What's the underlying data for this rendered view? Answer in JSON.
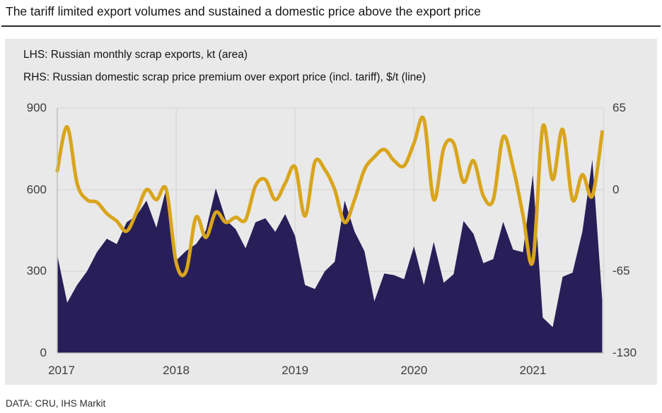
{
  "title": "The tariff limited export volumes and sustained a domestic price above the export price",
  "legend": {
    "lhs": "LHS: Russian monthly scrap exports, kt (area)",
    "rhs": "RHS: Russian domestic scrap price premium over export price (incl. tariff), $/t (line)"
  },
  "footer": "DATA: CRU, IHS Markit",
  "colors": {
    "area": "#281F58",
    "line": "#D9A51C",
    "panel_bg": "#E9E9E9",
    "grid": "#D9D9D9",
    "axis": "#BFBFBF",
    "tick_text": "#3D3D3D"
  },
  "chart_data": {
    "type": "area+line combo, dual axis, monthly Jan 2017 - Aug 2021",
    "x": {
      "start_year": 2017,
      "start_month": 1,
      "months": 56,
      "tick_years": [
        "2017",
        "2018",
        "2019",
        "2020",
        "2021"
      ]
    },
    "y_left": {
      "label": "Russian monthly scrap exports, kt",
      "ticks": [
        0,
        300,
        600,
        900
      ],
      "range": [
        0,
        900
      ]
    },
    "y_right": {
      "label": "Domestic scrap price premium over export price (incl. tariff), $/t",
      "ticks": [
        -130,
        -65,
        0,
        65
      ],
      "range": [
        -130,
        65
      ]
    },
    "series": [
      {
        "name": "Russian monthly scrap exports, kt",
        "type": "area",
        "axis": "left",
        "values": [
          360,
          185,
          250,
          300,
          370,
          420,
          400,
          480,
          505,
          560,
          460,
          605,
          340,
          375,
          400,
          450,
          605,
          490,
          455,
          385,
          480,
          495,
          445,
          510,
          430,
          250,
          235,
          300,
          335,
          560,
          446,
          374,
          190,
          292,
          286,
          271,
          392,
          250,
          408,
          258,
          290,
          485,
          438,
          330,
          345,
          482,
          380,
          370,
          655,
          130,
          95,
          280,
          295,
          447,
          710,
          195
        ]
      },
      {
        "name": "Russian domestic scrap price premium over export price (incl. tariff), $/t",
        "type": "line",
        "axis": "right",
        "values": [
          15,
          50,
          5,
          -8,
          -10,
          -19,
          -25,
          -33,
          -18,
          0,
          -8,
          0,
          -58,
          -65,
          -22,
          -38,
          -18,
          -26,
          -22,
          -24,
          3,
          8,
          -8,
          5,
          18,
          -21,
          22,
          16,
          0,
          -26,
          -8,
          16,
          26,
          32,
          23,
          19,
          37,
          56,
          -8,
          33,
          37,
          6,
          23,
          -5,
          -8,
          42,
          18,
          -20,
          -57,
          50,
          8,
          48,
          -8,
          12,
          -5,
          46
        ]
      }
    ],
    "grid": "horizontal at left ticks, vertical at year starts",
    "legend_position": "text lines above plot, inside panel"
  }
}
